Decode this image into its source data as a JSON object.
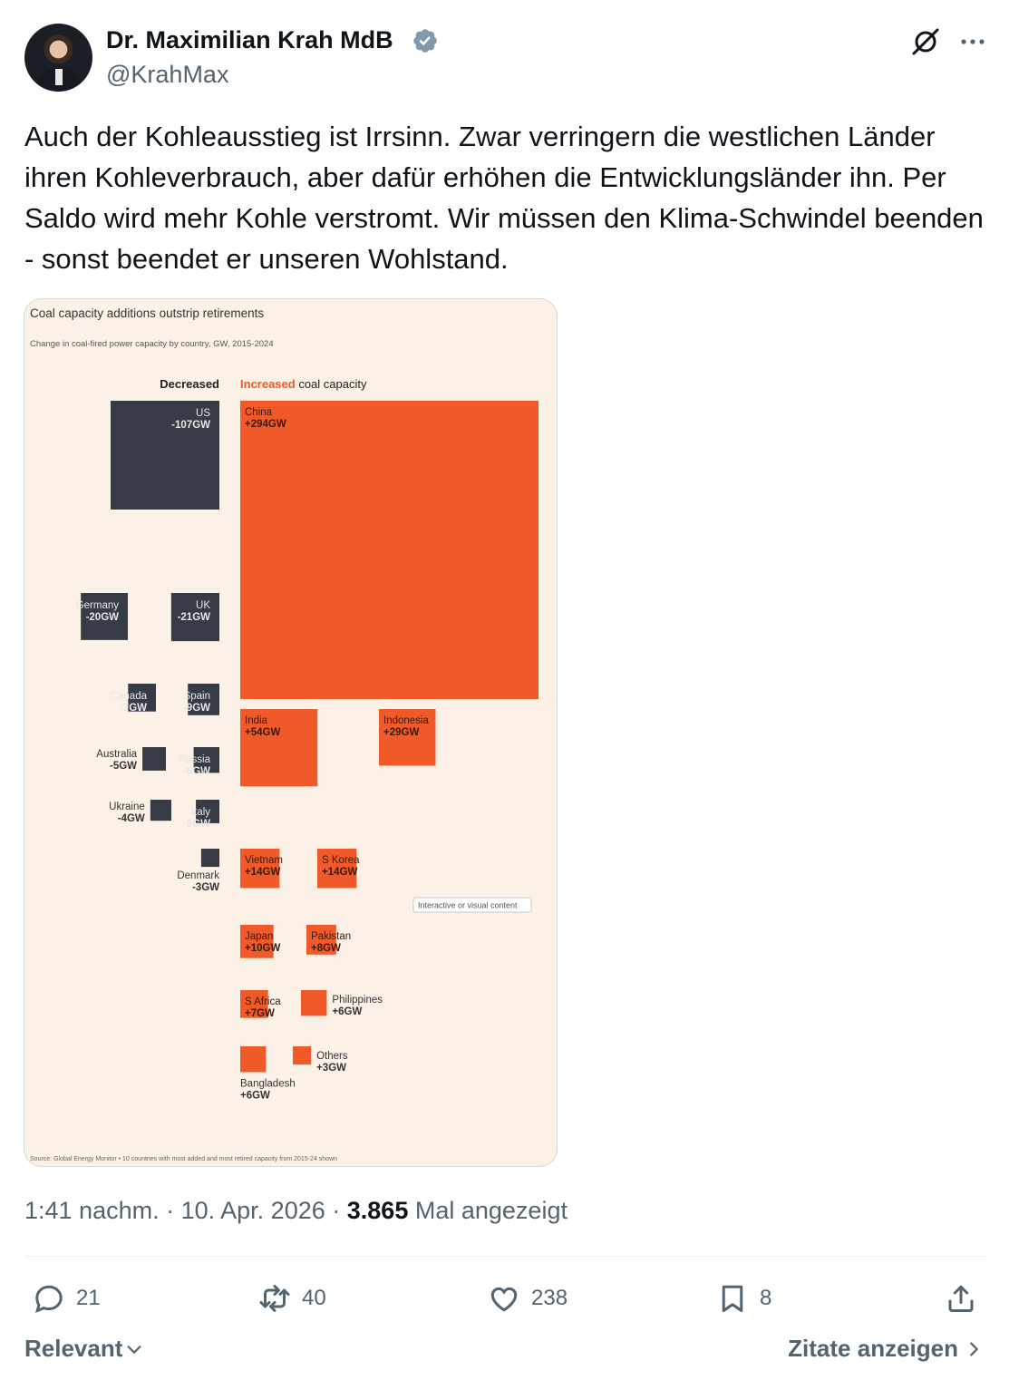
{
  "author": {
    "name": "Dr. Maximilian Krah MdB",
    "handle": "@KrahMax"
  },
  "tweet": {
    "text": "Auch der Kohleausstieg ist Irrsinn. Zwar verringern die westlichen Länder ihren Kohleverbrauch, aber dafür erhöhen die Entwicklungsländer ihn. Per Saldo wird mehr Kohle verstromt. Wir müssen den Klima-Schwindel beenden - sonst beendet er unseren Wohlstand."
  },
  "meta": {
    "time": "1:41 nachm.",
    "date": "10. Apr. 2026",
    "views": "3.865",
    "views_label": "Mal angezeigt"
  },
  "actions": {
    "replies": "21",
    "reposts": "40",
    "likes": "238",
    "bookmarks": "8"
  },
  "footer": {
    "sort_label": "Relevant",
    "quotes_label": "Zitate anzeigen"
  },
  "colors": {
    "decreased": "#363b46",
    "increased": "#f05a28",
    "background": "#fcf1e7"
  },
  "chart_data": {
    "type": "treemap",
    "title": "Coal capacity additions outstrip retirements",
    "subtitle": "Change in coal-fired power capacity by country, GW, 2015-2024",
    "legend_decreased": "Decreased",
    "legend_increased_word": "Increased",
    "legend_increased_rest": "coal capacity",
    "overlay_label": "Interactive or visual content",
    "source": "Source: Global Energy Monitor • 10 countries with most added and most retired capacity from 2015-24 shown",
    "decreased": [
      {
        "name": "US",
        "value": -107,
        "label": "-107GW"
      },
      {
        "name": "Germany",
        "value": -20,
        "label": "-20GW"
      },
      {
        "name": "UK",
        "value": -21,
        "label": "-21GW"
      },
      {
        "name": "Canada",
        "value": -7,
        "label": "-7GW"
      },
      {
        "name": "Spain",
        "value": -9,
        "label": "-9GW"
      },
      {
        "name": "Australia",
        "value": -5,
        "label": "-5GW"
      },
      {
        "name": "Russia",
        "value": -6,
        "label": "-6GW"
      },
      {
        "name": "Ukraine",
        "value": -4,
        "label": "-4GW"
      },
      {
        "name": "Italy",
        "value": -5,
        "label": "-5GW"
      },
      {
        "name": "Denmark",
        "value": -3,
        "label": "-3GW"
      }
    ],
    "increased": [
      {
        "name": "China",
        "value": 294,
        "label": "+294GW"
      },
      {
        "name": "India",
        "value": 54,
        "label": "+54GW"
      },
      {
        "name": "Indonesia",
        "value": 29,
        "label": "+29GW"
      },
      {
        "name": "Vietnam",
        "value": 14,
        "label": "+14GW"
      },
      {
        "name": "S Korea",
        "value": 14,
        "label": "+14GW"
      },
      {
        "name": "Japan",
        "value": 10,
        "label": "+10GW"
      },
      {
        "name": "Pakistan",
        "value": 8,
        "label": "+8GW"
      },
      {
        "name": "S Africa",
        "value": 7,
        "label": "+7GW"
      },
      {
        "name": "Philippines",
        "value": 6,
        "label": "+6GW"
      },
      {
        "name": "Bangladesh",
        "value": 6,
        "label": "+6GW"
      },
      {
        "name": "Others",
        "value": 3,
        "label": "+3GW"
      }
    ]
  }
}
